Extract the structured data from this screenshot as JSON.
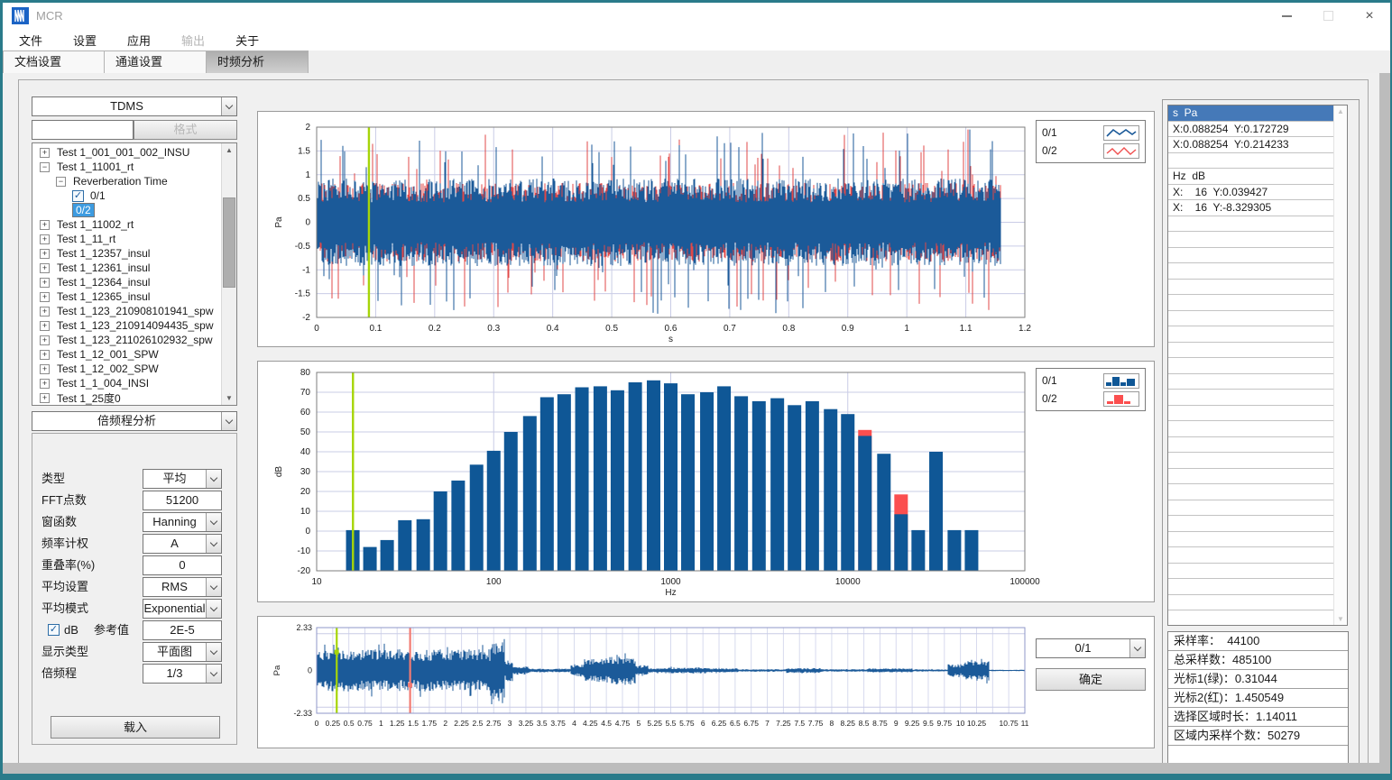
{
  "window": {
    "title": "MCR"
  },
  "menu": {
    "items": [
      {
        "label": "文件",
        "disabled": false
      },
      {
        "label": "设置",
        "disabled": false
      },
      {
        "label": "应用",
        "disabled": false
      },
      {
        "label": "输出",
        "disabled": true
      },
      {
        "label": "关于",
        "disabled": false
      }
    ]
  },
  "tabs": {
    "items": [
      {
        "label": "文档设置",
        "active": false
      },
      {
        "label": "通道设置",
        "active": false
      },
      {
        "label": "时频分析",
        "active": true
      }
    ]
  },
  "sidebar": {
    "format_select_value": "TDMS",
    "search_value": "",
    "format_button": "格式",
    "tree": [
      {
        "level": 0,
        "expander": "+",
        "label": "Test 1_001_001_002_INSU"
      },
      {
        "level": 0,
        "expander": "-",
        "label": "Test 1_11001_rt"
      },
      {
        "level": 1,
        "expander": "-",
        "label": "Reverberation Time"
      },
      {
        "level": 2,
        "checkbox": true,
        "checked": true,
        "label": "0/1"
      },
      {
        "level": 2,
        "checkbox": true,
        "checked": true,
        "label": "0/2",
        "selected": true
      },
      {
        "level": 0,
        "expander": "+",
        "label": "Test 1_11002_rt"
      },
      {
        "level": 0,
        "expander": "+",
        "label": "Test 1_11_rt"
      },
      {
        "level": 0,
        "expander": "+",
        "label": "Test 1_12357_insul"
      },
      {
        "level": 0,
        "expander": "+",
        "label": "Test 1_12361_insul"
      },
      {
        "level": 0,
        "expander": "+",
        "label": "Test 1_12364_insul"
      },
      {
        "level": 0,
        "expander": "+",
        "label": "Test 1_12365_insul"
      },
      {
        "level": 0,
        "expander": "+",
        "label": "Test 1_123_210908101941_spw"
      },
      {
        "level": 0,
        "expander": "+",
        "label": "Test 1_123_210914094435_spw"
      },
      {
        "level": 0,
        "expander": "+",
        "label": "Test 1_123_211026102932_spw"
      },
      {
        "level": 0,
        "expander": "+",
        "label": "Test 1_12_001_SPW"
      },
      {
        "level": 0,
        "expander": "+",
        "label": "Test 1_12_002_SPW"
      },
      {
        "level": 0,
        "expander": "+",
        "label": "Test 1_1_004_INSI"
      },
      {
        "level": 0,
        "expander": "+",
        "label": "Test 1_25度0"
      }
    ],
    "analysis_select_value": "倍频程分析",
    "form": {
      "fields": [
        {
          "label": "类型",
          "type": "select",
          "value": "平均"
        },
        {
          "label": "FFT点数",
          "type": "input",
          "value": "51200"
        },
        {
          "label": "窗函数",
          "type": "select",
          "value": "Hanning"
        },
        {
          "label": "频率计权",
          "type": "select",
          "value": "A"
        },
        {
          "label": "重叠率(%)",
          "type": "input",
          "value": "0"
        },
        {
          "label": "平均设置",
          "type": "select",
          "value": "RMS"
        },
        {
          "label": "平均模式",
          "type": "select",
          "value": "Exponential"
        },
        {
          "label": "参考值",
          "type": "checkbox-input",
          "checkbox_label": "dB",
          "checked": true,
          "value": "2E-5"
        },
        {
          "label": "显示类型",
          "type": "select",
          "value": "平面图"
        },
        {
          "label": "倍频程",
          "type": "select",
          "value": "1/3"
        }
      ]
    },
    "load_button": "载入"
  },
  "charts_ui": {
    "legend_top": [
      {
        "name": "0/1",
        "color": "#1b5a99"
      },
      {
        "name": "0/2",
        "color": "#f05050"
      }
    ],
    "legend_mid": [
      {
        "name": "0/1",
        "color": "#0f5796"
      },
      {
        "name": "0/2",
        "color": "#fb4f4f"
      }
    ],
    "channel_select_value": "0/1",
    "confirm_button": "确定"
  },
  "right_panel": {
    "cursor_rows": [
      {
        "text": "s  Pa",
        "header": true
      },
      {
        "text": "X:0.088254  Y:0.172729"
      },
      {
        "text": "X:0.088254  Y:0.214233"
      },
      {
        "text": ""
      },
      {
        "text": "Hz  dB"
      },
      {
        "text": "X:    16  Y:0.039427"
      },
      {
        "text": "X:    16  Y:-8.329305"
      }
    ],
    "stats_rows": [
      "采样率：  44100",
      "总采样数：485100",
      "光标1(绿)：0.31044",
      "光标2(红)：1.450549",
      "选择区域时长：1.14011",
      "区域内采样个数：50279"
    ]
  },
  "chart_data": [
    {
      "id": "time-waveform-top",
      "type": "line",
      "xlabel": "s",
      "ylabel": "Pa",
      "xlim": [
        0,
        1.2
      ],
      "ylim": [
        -2,
        2
      ],
      "xtick_step": 0.1,
      "ytick_step": 0.5,
      "grid": true,
      "series": [
        {
          "name": "0/1",
          "color": "#1b5a99"
        },
        {
          "name": "0/2",
          "color": "#e04848"
        }
      ],
      "signal": {
        "kind": "broadband-noise",
        "duration_s": 1.16,
        "typical_amplitude_pa": 0.8,
        "peak_amplitude_pa": 1.7
      },
      "cursors": [
        {
          "color": "#a6d508",
          "x": 0.088254
        }
      ]
    },
    {
      "id": "third-octave-spectrum",
      "type": "bar",
      "xlabel": "Hz",
      "ylabel": "dB",
      "xscale": "log",
      "xlim": [
        10,
        100000
      ],
      "ylim": [
        -20,
        80
      ],
      "ytick_step": 10,
      "categories": [
        16,
        20,
        25,
        31.5,
        40,
        50,
        63,
        80,
        100,
        125,
        160,
        200,
        250,
        315,
        400,
        500,
        630,
        800,
        1000,
        1250,
        1600,
        2000,
        2500,
        3150,
        4000,
        5000,
        6300,
        8000,
        10000,
        12500,
        16000,
        20000,
        25000,
        31500,
        40000,
        50000
      ],
      "series": [
        {
          "name": "0/1",
          "color": "#0f5796",
          "values": [
            0.5,
            -8,
            -4.5,
            5.5,
            6,
            20,
            25.5,
            33.5,
            40.5,
            50,
            58,
            67.5,
            69,
            72.5,
            73,
            71,
            75,
            76,
            74.5,
            69,
            70,
            73,
            68,
            65.5,
            67,
            63.5,
            65.5,
            61.5,
            59,
            48,
            39,
            8.5,
            0.5,
            40,
            0.5,
            0.5
          ]
        },
        {
          "name": "0/2",
          "color": "#fb4f4f",
          "values": [
            null,
            null,
            null,
            null,
            null,
            null,
            null,
            null,
            null,
            null,
            null,
            null,
            null,
            null,
            null,
            null,
            null,
            null,
            null,
            null,
            null,
            null,
            null,
            null,
            null,
            null,
            null,
            null,
            null,
            51,
            null,
            18.5,
            null,
            null,
            null,
            null
          ]
        }
      ],
      "cursors": [
        {
          "color": "#a6d508",
          "x": 16
        }
      ]
    },
    {
      "id": "time-waveform-full",
      "type": "line",
      "xlabel": "",
      "ylabel": "Pa",
      "xlim": [
        0,
        11
      ],
      "ylim": [
        -2.33,
        2.33
      ],
      "xtick_step": 0.25,
      "yticks": [
        2.33,
        0,
        -2.33
      ],
      "series": [
        {
          "name": "0/1",
          "color": "#1b5a99"
        }
      ],
      "envelope": [
        [
          0,
          2.7,
          1.15
        ],
        [
          2.7,
          2.92,
          1.9
        ],
        [
          2.92,
          3.05,
          0.6
        ],
        [
          3.05,
          3.3,
          0.22
        ],
        [
          3.3,
          3.95,
          0.1
        ],
        [
          3.95,
          4.15,
          0.35
        ],
        [
          4.15,
          4.55,
          0.65
        ],
        [
          4.55,
          4.95,
          0.8
        ],
        [
          4.95,
          5.15,
          0.3
        ],
        [
          5.15,
          5.45,
          0.12
        ],
        [
          5.45,
          6.05,
          0.16
        ],
        [
          6.05,
          6.55,
          0.12
        ],
        [
          6.55,
          7.3,
          0.07
        ],
        [
          7.3,
          7.85,
          0.13
        ],
        [
          7.85,
          8.55,
          0.07
        ],
        [
          8.55,
          9.25,
          0.11
        ],
        [
          9.25,
          9.8,
          0.06
        ],
        [
          9.8,
          10.05,
          0.35
        ],
        [
          10.05,
          10.45,
          0.55
        ],
        [
          10.45,
          11,
          0.04
        ]
      ],
      "cursors": [
        {
          "color": "#a6d508",
          "x": 0.31044,
          "marker_y": 1.0
        },
        {
          "color": "#f27b73",
          "x": 1.450549,
          "marker_y": -0.8
        }
      ]
    }
  ]
}
